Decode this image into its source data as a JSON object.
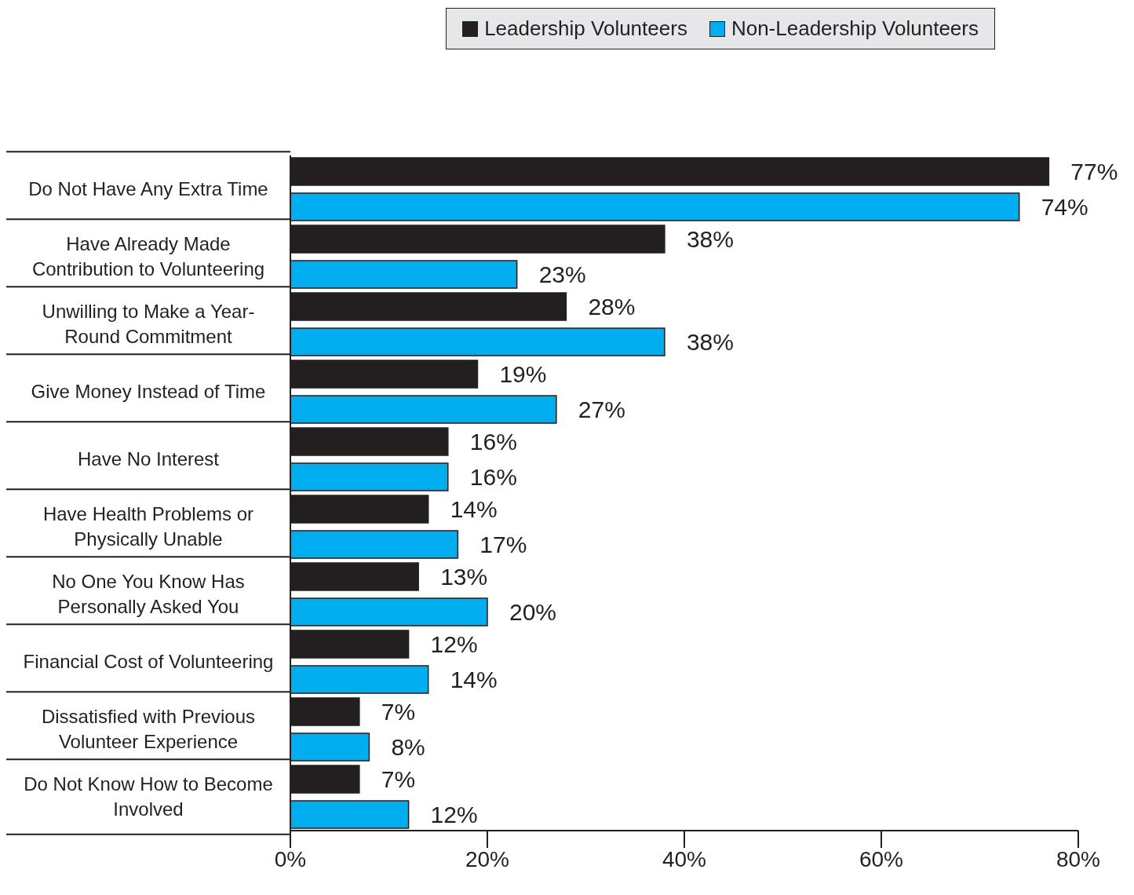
{
  "chart_data": {
    "type": "bar",
    "orientation": "horizontal",
    "categories": [
      "Do Not Have Any Extra Time",
      "Have Already Made Contribution to Volunteering",
      "Unwilling to Make a Year-Round Commitment",
      "Give Money Instead of Time",
      "Have No Interest",
      "Have Health Problems or Physically Unable",
      "No One You Know Has Personally Asked You",
      "Financial Cost of Volunteering",
      "Dissatisfied with Previous Volunteer Experience",
      "Do Not Know How to Become Involved"
    ],
    "series": [
      {
        "name": "Leadership Volunteers",
        "color": "#231f20",
        "values": [
          77,
          38,
          28,
          19,
          16,
          14,
          13,
          12,
          7,
          7
        ],
        "value_labels": [
          "77%",
          "38%",
          "28%",
          "19%",
          "16%",
          "14%",
          "13%",
          "12%",
          "7%",
          "7%"
        ]
      },
      {
        "name": "Non-Leadership Volunteers",
        "color": "#00aeef",
        "values": [
          74,
          23,
          38,
          27,
          16,
          17,
          20,
          14,
          8,
          12
        ],
        "value_labels": [
          "74%",
          "23%",
          "38%",
          "27%",
          "16%",
          "17%",
          "20%",
          "14%",
          "8%",
          "12%"
        ]
      }
    ],
    "xlim": [
      0,
      80
    ],
    "xticks": [
      {
        "value": 0,
        "label": "0%"
      },
      {
        "value": 20,
        "label": "20%"
      },
      {
        "value": 40,
        "label": "40%"
      },
      {
        "value": 60,
        "label": "60%"
      },
      {
        "value": 80,
        "label": "80%"
      }
    ],
    "legend": "top right"
  }
}
